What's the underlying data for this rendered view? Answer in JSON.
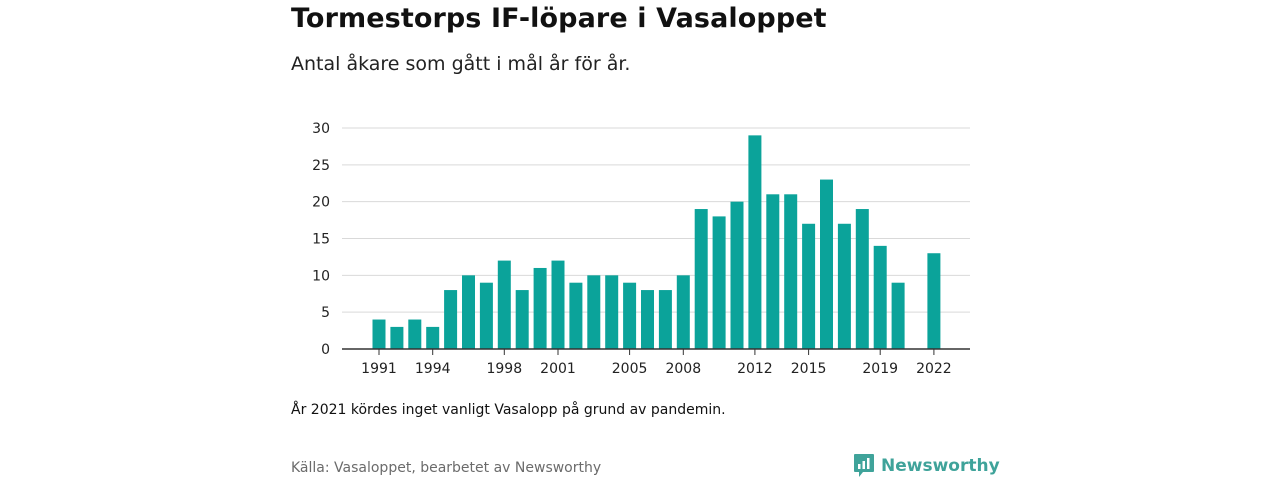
{
  "title": "Tormestorps IF-löpare i Vasaloppet",
  "subtitle": "Antal åkare som gått i mål år för år.",
  "note": "År 2021 kördes inget vanligt Vasalopp på grund av pandemin.",
  "source": "Källa: Vasaloppet, bearbetet av Newsworthy",
  "brand": {
    "name": "Newsworthy",
    "icon": "newsworthy-logo-icon",
    "color": "#3fa39a"
  },
  "chart_data": {
    "type": "bar",
    "x": [
      1991,
      1992,
      1993,
      1994,
      1995,
      1996,
      1997,
      1998,
      1999,
      2000,
      2001,
      2002,
      2003,
      2004,
      2005,
      2006,
      2007,
      2008,
      2009,
      2010,
      2011,
      2012,
      2013,
      2014,
      2015,
      2016,
      2017,
      2018,
      2019,
      2020,
      2021,
      2022
    ],
    "values": [
      4,
      3,
      4,
      3,
      8,
      10,
      9,
      12,
      8,
      11,
      12,
      9,
      10,
      10,
      9,
      8,
      8,
      10,
      19,
      18,
      20,
      29,
      21,
      21,
      17,
      23,
      17,
      19,
      14,
      9,
      null,
      13
    ],
    "x_tick_labels": [
      "1991",
      "1994",
      "1998",
      "2001",
      "2005",
      "2008",
      "2012",
      "2015",
      "2019",
      "2022"
    ],
    "y_ticks": [
      0,
      5,
      10,
      15,
      20,
      25,
      30
    ],
    "ylim": [
      0,
      30
    ],
    "grid": true,
    "bar_color": "#0ba39a"
  }
}
